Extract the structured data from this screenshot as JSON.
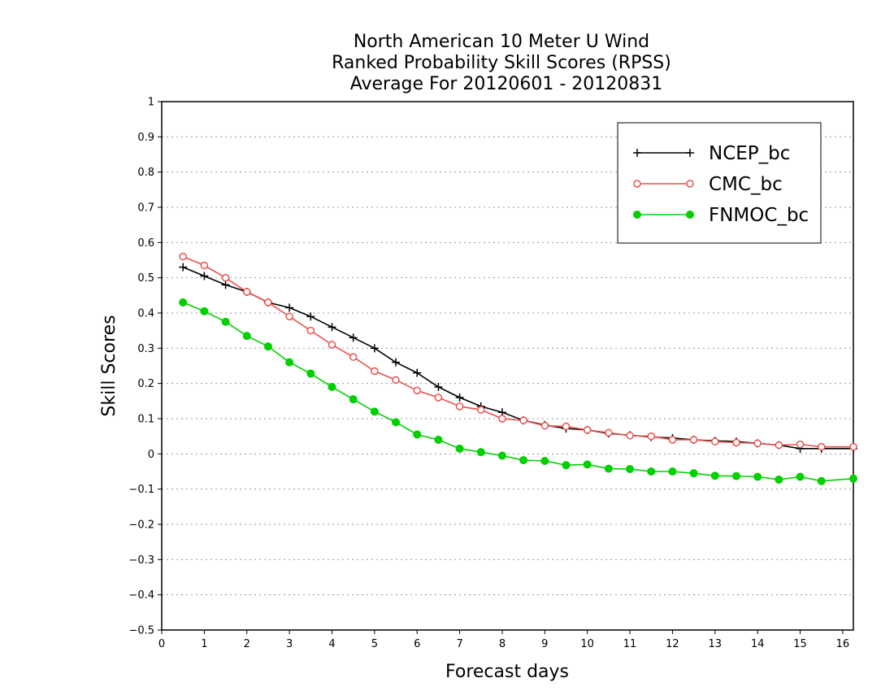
{
  "chart_data": {
    "type": "line",
    "title": [
      "North American 10 Meter U Wind",
      "Ranked Probability Skill Scores (RPSS)",
      "Average For 20120601 - 20120831"
    ],
    "xlabel": "Forecast days",
    "ylabel": "Skill Scores",
    "xlim": [
      0,
      16.25
    ],
    "ylim": [
      -0.5,
      1
    ],
    "xticks": [
      "0",
      "1",
      "2",
      "3",
      "4",
      "5",
      "6",
      "7",
      "8",
      "9",
      "10",
      "11",
      "12",
      "13",
      "14",
      "15",
      "16"
    ],
    "yticks": [
      "1",
      "0.9",
      "0.8",
      "0.7",
      "0.6",
      "0.5",
      "0.4",
      "0.3",
      "0.2",
      "0.1",
      "0",
      "−0.1",
      "−0.2",
      "−0.3",
      "−0.4",
      "−0.5"
    ],
    "grid": "horizontal dotted",
    "legend_position": "top-right",
    "x": [
      0.5,
      1,
      1.5,
      2,
      2.5,
      3,
      3.5,
      4,
      4.5,
      5,
      5.5,
      6,
      6.5,
      7,
      7.5,
      8,
      8.5,
      9,
      9.5,
      10,
      10.5,
      11,
      11.5,
      12,
      12.5,
      13,
      13.5,
      14,
      14.5,
      15,
      15.5,
      16.25
    ],
    "series": [
      {
        "name": "NCEP_bc",
        "color": "#000000",
        "marker": "plus",
        "values": [
          0.53,
          0.505,
          0.48,
          0.46,
          0.43,
          0.415,
          0.39,
          0.36,
          0.33,
          0.3,
          0.26,
          0.23,
          0.19,
          0.16,
          0.135,
          0.118,
          0.095,
          0.082,
          0.072,
          0.068,
          0.058,
          0.053,
          0.048,
          0.045,
          0.04,
          0.037,
          0.035,
          0.03,
          0.025,
          0.015,
          0.015,
          0.015
        ]
      },
      {
        "name": "CMC_bc",
        "color": "#e8524f",
        "marker": "open-circle",
        "values": [
          0.56,
          0.535,
          0.5,
          0.46,
          0.43,
          0.39,
          0.35,
          0.31,
          0.275,
          0.235,
          0.21,
          0.18,
          0.16,
          0.135,
          0.125,
          0.1,
          0.095,
          0.08,
          0.078,
          0.068,
          0.06,
          0.052,
          0.05,
          0.04,
          0.04,
          0.035,
          0.032,
          0.03,
          0.025,
          0.027,
          0.02,
          0.02
        ]
      },
      {
        "name": "FNMOC_bc",
        "color": "#00d000",
        "marker": "filled-circle",
        "values": [
          0.43,
          0.405,
          0.375,
          0.335,
          0.305,
          0.26,
          0.228,
          0.19,
          0.155,
          0.12,
          0.09,
          0.055,
          0.04,
          0.015,
          0.005,
          -0.005,
          -0.018,
          -0.02,
          -0.032,
          -0.03,
          -0.042,
          -0.043,
          -0.05,
          -0.05,
          -0.055,
          -0.062,
          -0.063,
          -0.065,
          -0.073,
          -0.065,
          -0.077,
          -0.07
        ]
      }
    ]
  }
}
